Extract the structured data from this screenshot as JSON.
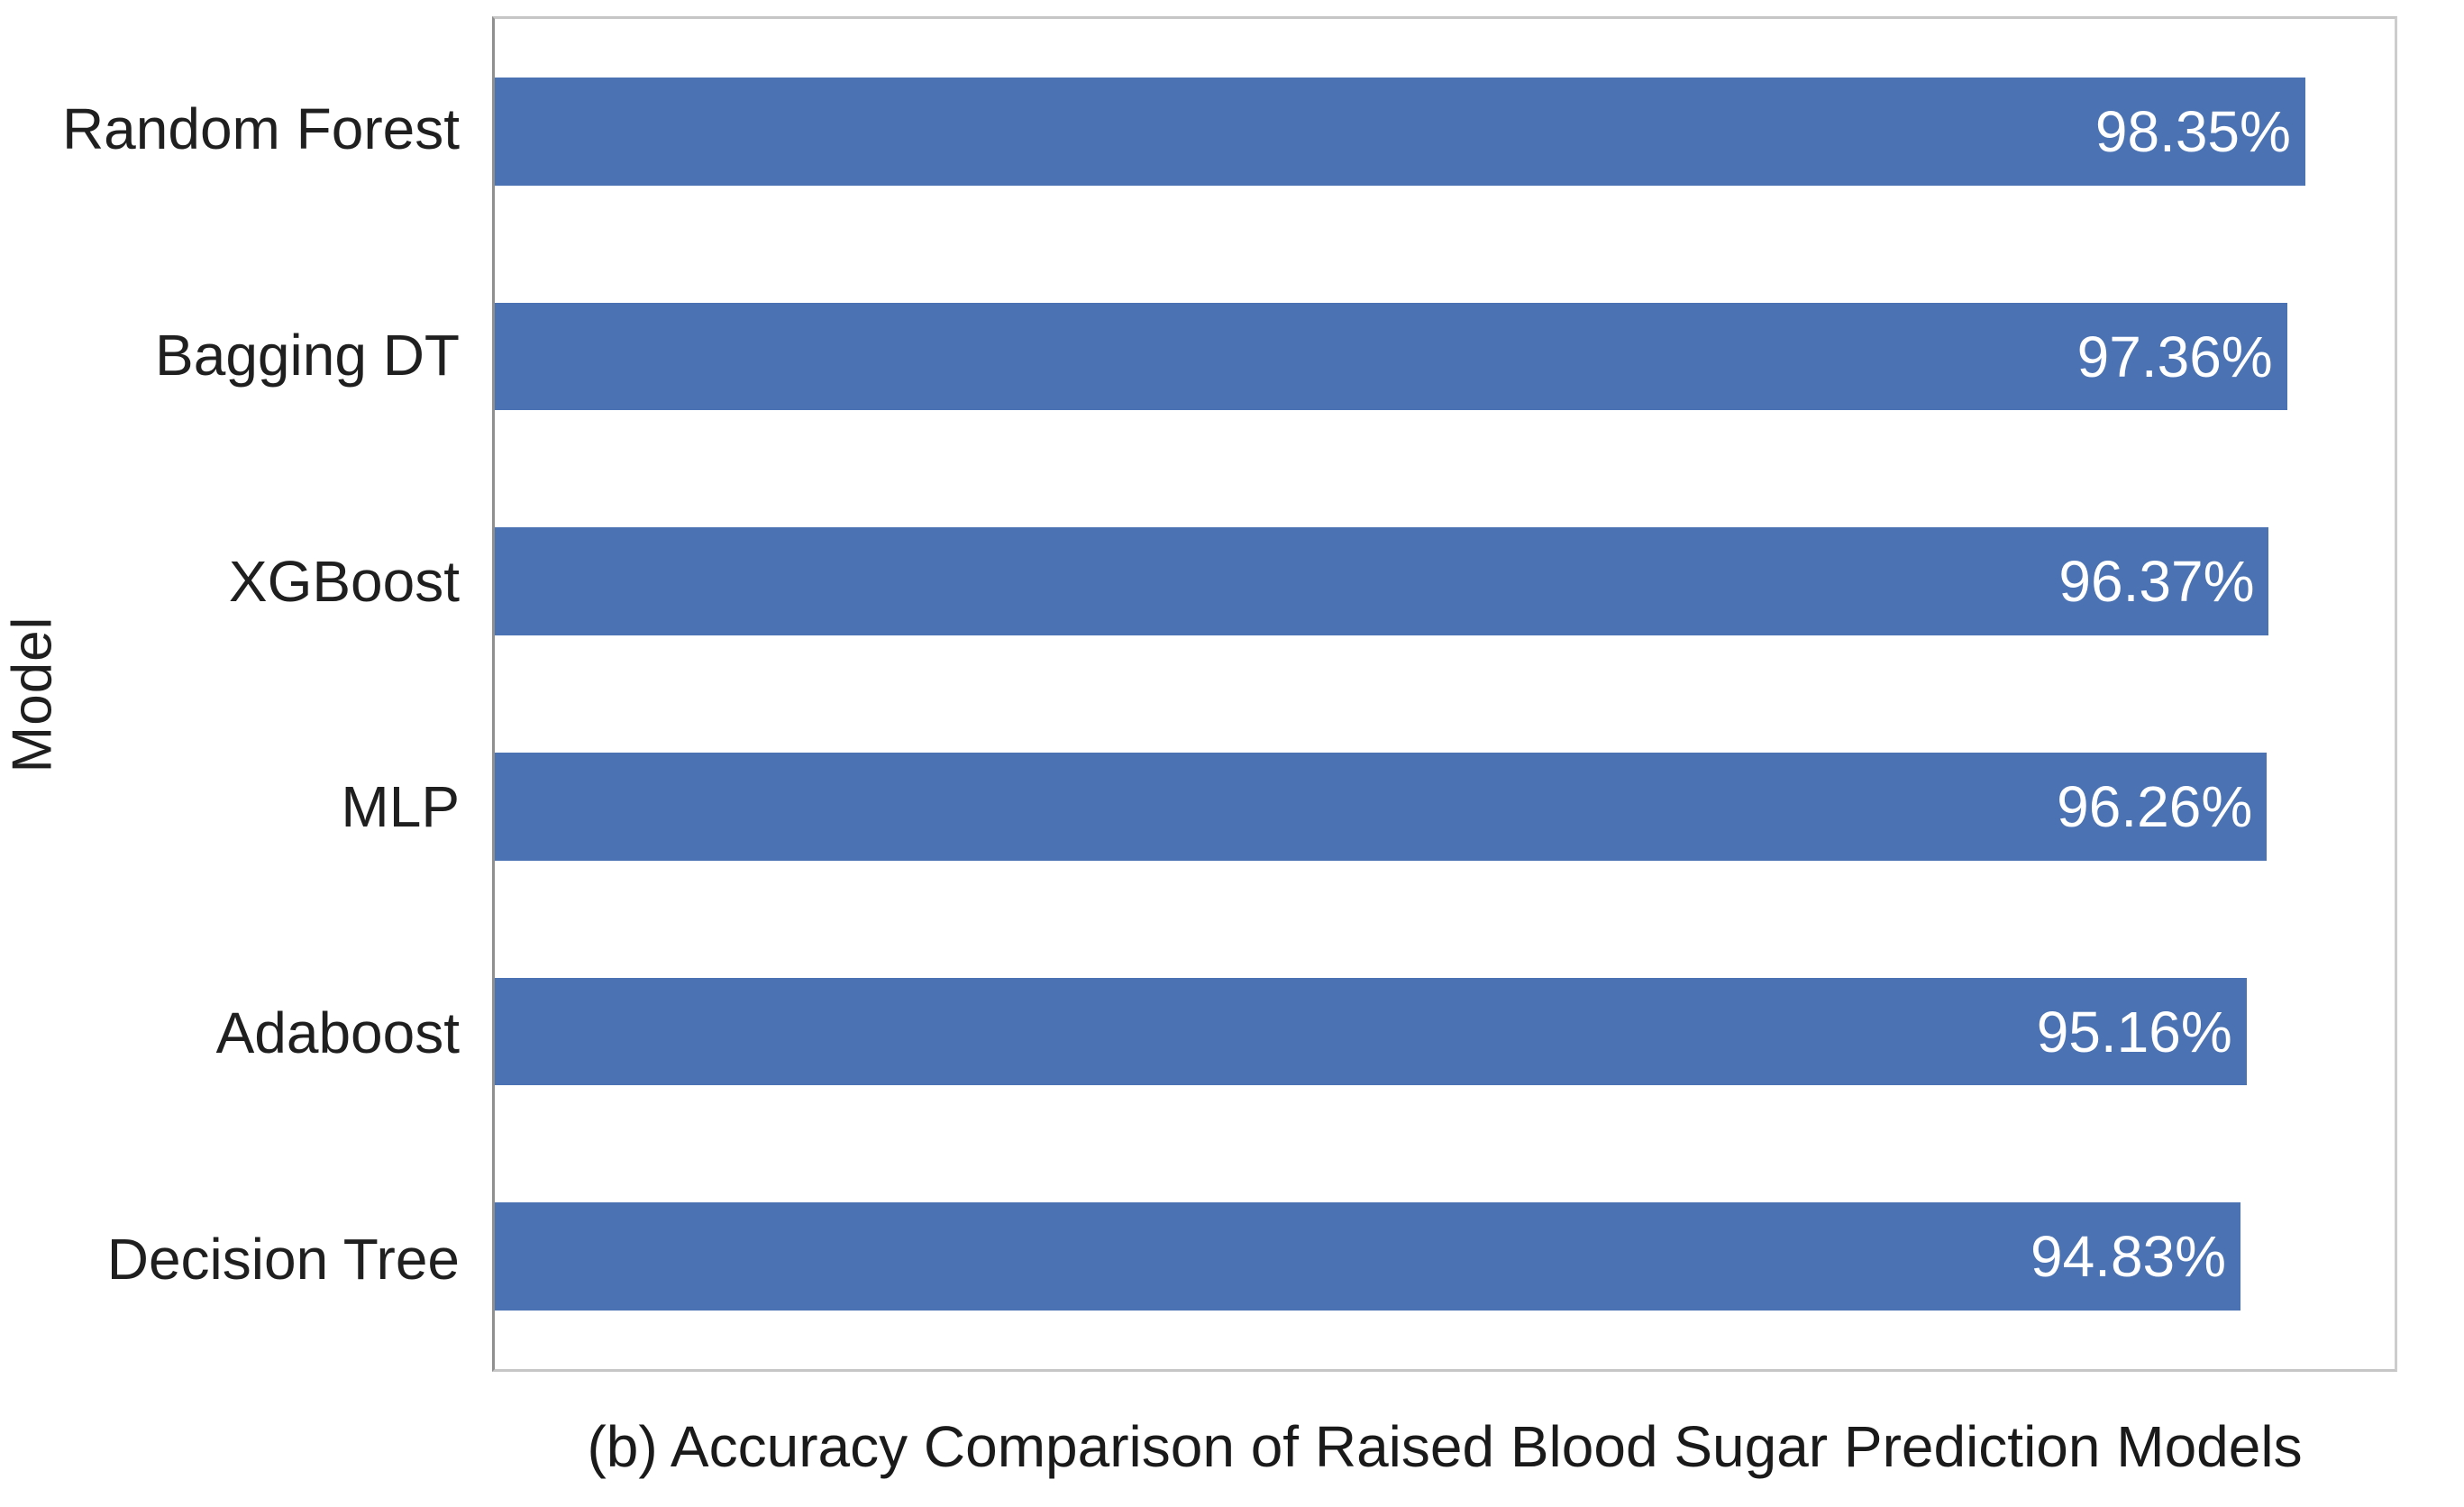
{
  "chart_data": {
    "type": "bar",
    "orientation": "horizontal",
    "caption": "(b) Accuracy Comparison of Raised Blood Sugar Prediction Models",
    "ylabel": "Model",
    "xlabel": "",
    "categories": [
      "Random Forest",
      "Bagging DT",
      "XGBoost",
      "MLP",
      "Adaboost",
      "Decision Tree"
    ],
    "values": [
      98.35,
      97.36,
      96.37,
      96.26,
      95.16,
      94.83
    ],
    "value_labels": [
      "98.35%",
      "97.36%",
      "96.37%",
      "96.26%",
      "95.16%",
      "94.83%"
    ],
    "xlim": [
      0,
      103.2
    ],
    "grid": false,
    "legend": "none",
    "bar_color": "#4b73b4",
    "value_label_color": "#ffffff",
    "tick_label_color": "#1f1f1f",
    "caption_color": "#1a1a1a",
    "plot_border_color": "#c6c6c6"
  }
}
